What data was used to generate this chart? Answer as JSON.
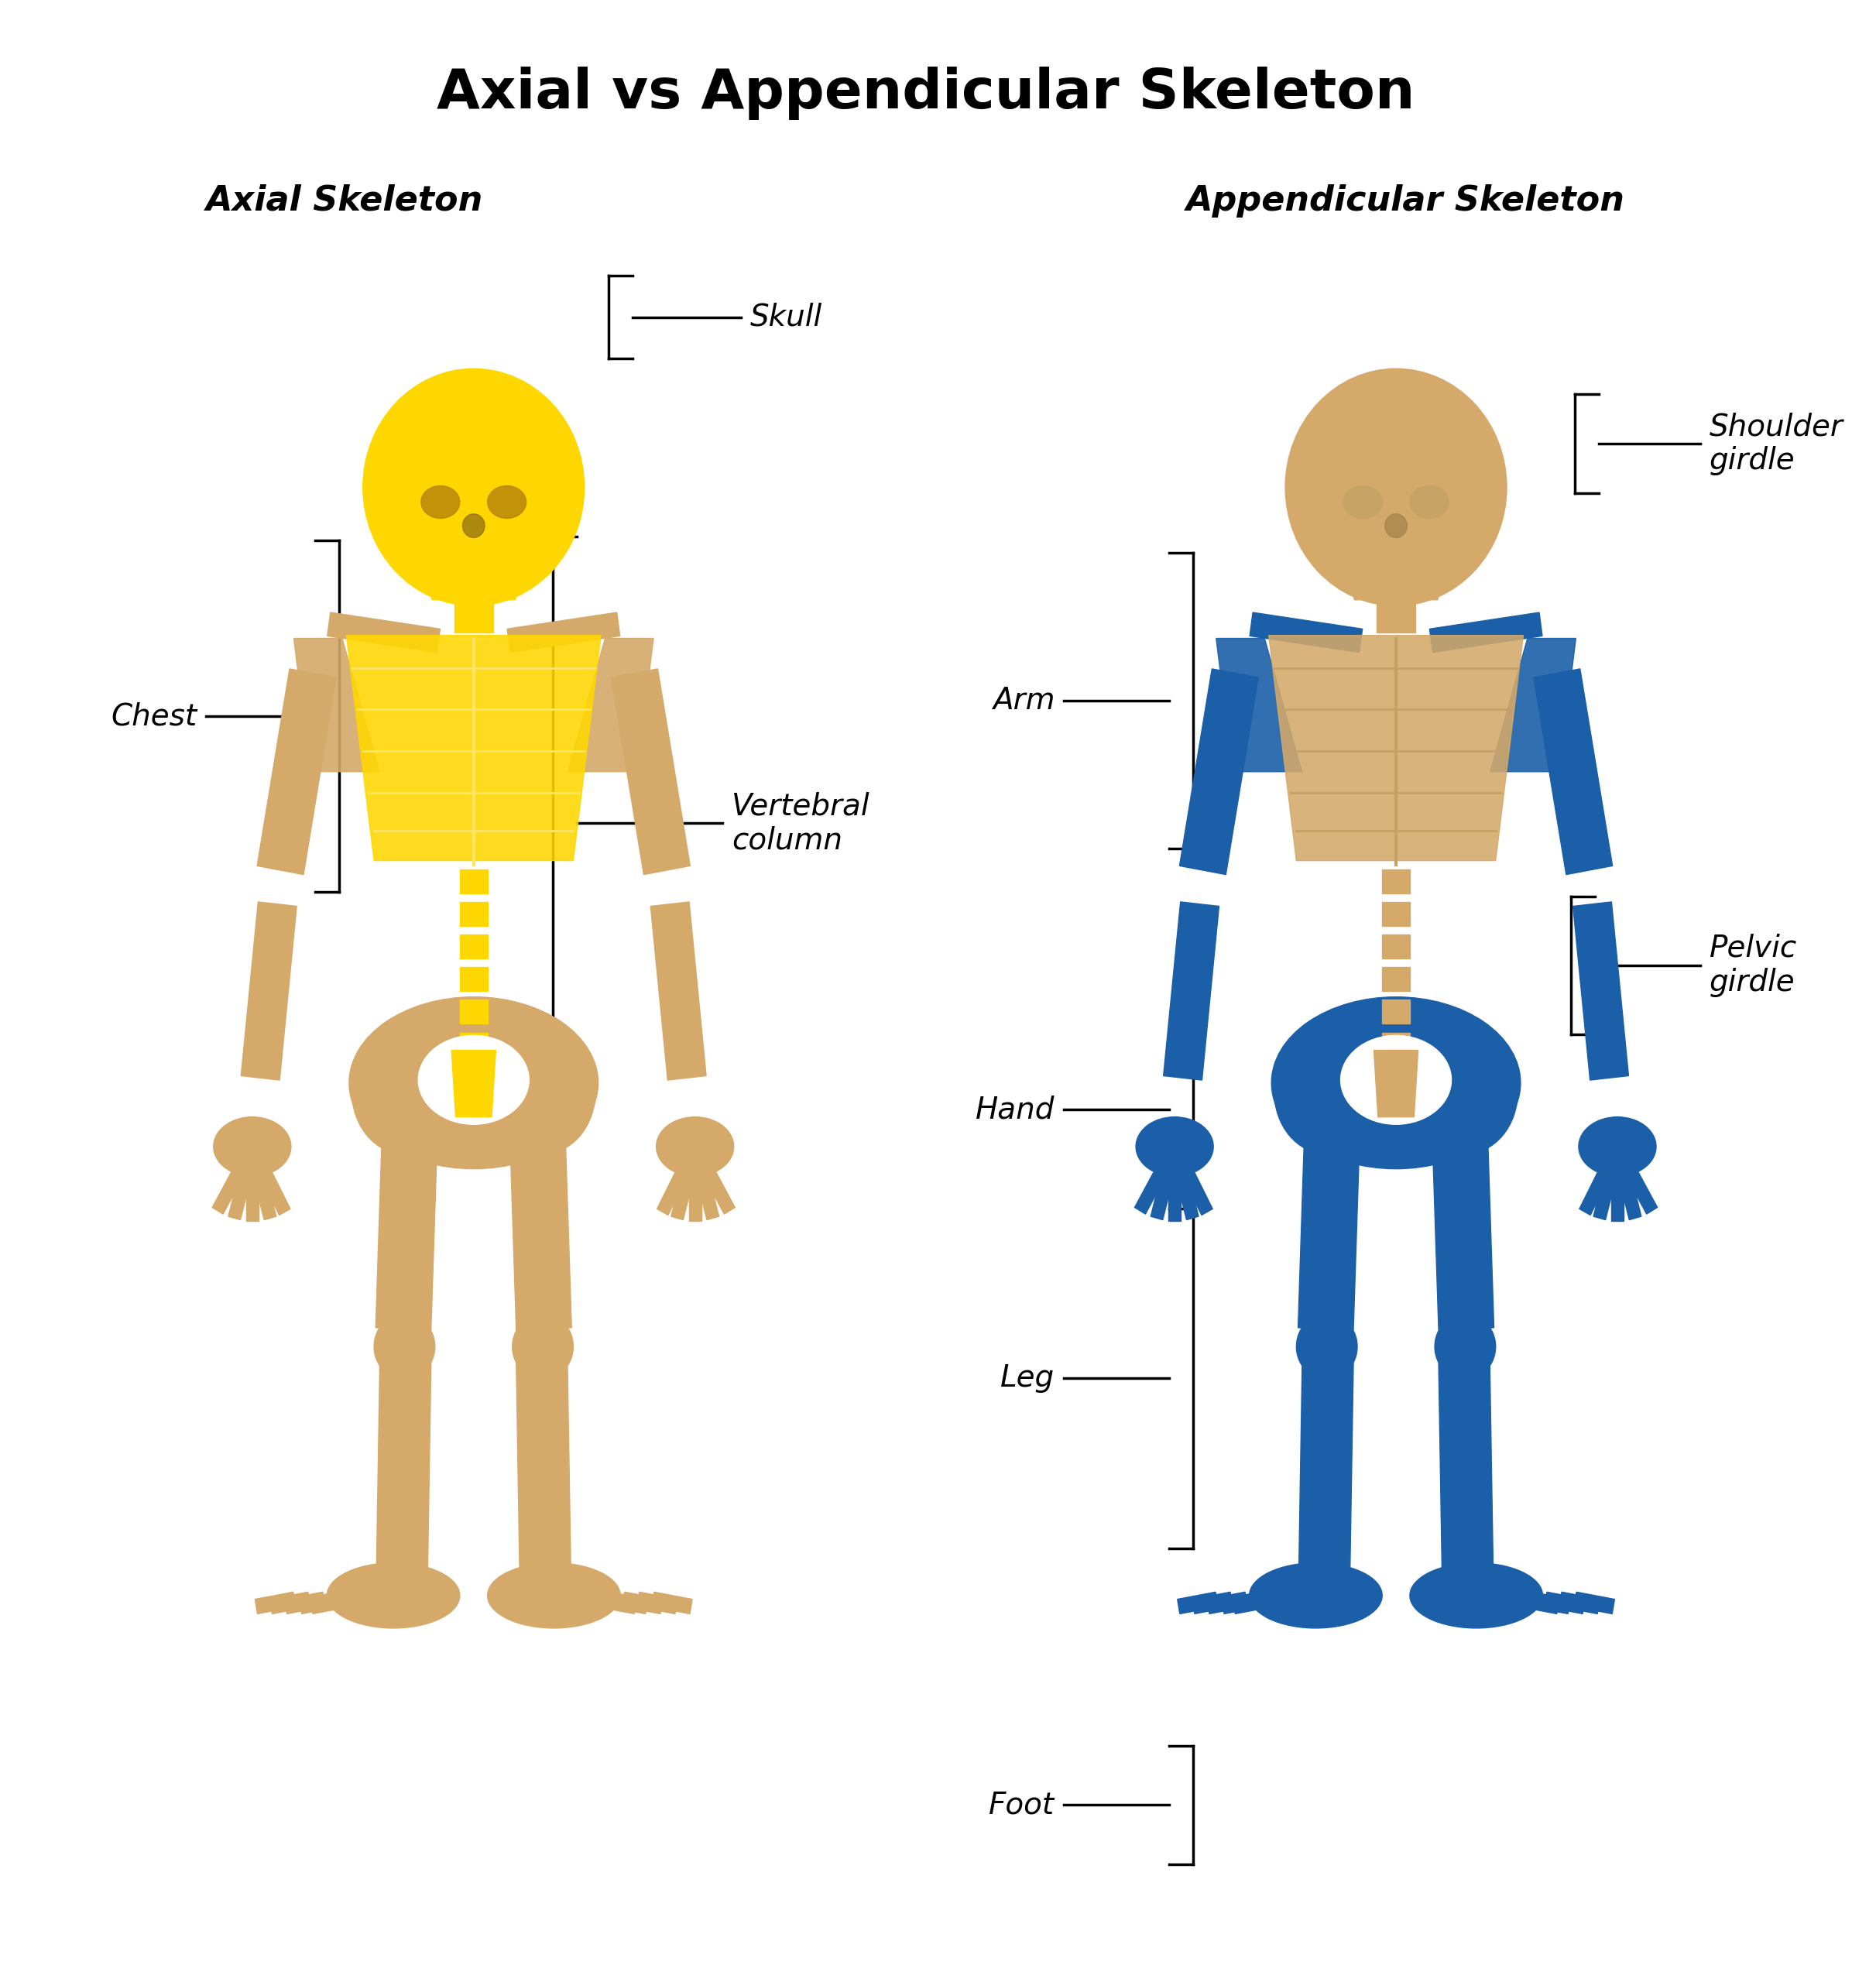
{
  "title": "Axial vs Appendicular Skeleton",
  "title_fontsize": 52,
  "title_fontweight": "bold",
  "background_color": "#ffffff",
  "left_label": "Axial Skeleton",
  "right_label": "Appendicular Skeleton",
  "subtitle_fontsize": 32,
  "annotation_fontsize": 28,
  "axial_color": "#FFD700",
  "appendicular_color": "#1a5fa8",
  "bone_tan": "#D4A96A"
}
